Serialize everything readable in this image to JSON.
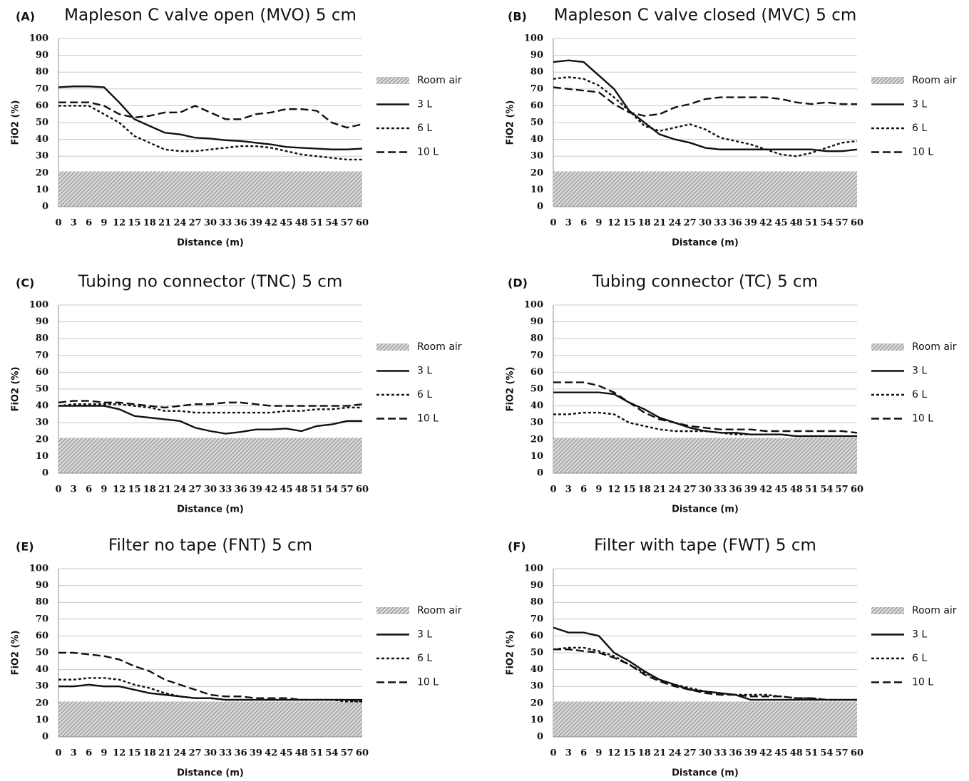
{
  "chart_data": [
    {
      "type": "line",
      "label": "(A)",
      "title": "Mapleson C valve open (MVO) 5 cm",
      "xlabel": "Distance (m)",
      "ylabel": "FiO2 (%)",
      "categories": [
        "0",
        "3",
        "6",
        "9",
        "12",
        "15",
        "18",
        "21",
        "24",
        "27",
        "30",
        "33",
        "36",
        "39",
        "42",
        "45",
        "48",
        "51",
        "54",
        "57",
        "60"
      ],
      "ylim": [
        0,
        100
      ],
      "yticks": [
        0,
        10,
        20,
        30,
        40,
        50,
        60,
        70,
        80,
        90,
        100
      ],
      "grid": true,
      "series": [
        {
          "name": "Room air",
          "style": "area",
          "color": "#888888",
          "values": [
            21,
            21,
            21,
            21,
            21,
            21,
            21,
            21,
            21,
            21,
            21,
            21,
            21,
            21,
            21,
            21,
            21,
            21,
            21,
            21,
            21
          ]
        },
        {
          "name": "3 L",
          "style": "solid",
          "color": "#111111",
          "values": [
            71,
            71.5,
            71.5,
            71,
            62,
            52,
            48,
            44,
            43,
            41,
            40.5,
            39.5,
            39,
            38,
            37,
            35.5,
            35,
            34.5,
            34,
            34,
            34.5
          ]
        },
        {
          "name": "6 L",
          "style": "dotted",
          "color": "#111111",
          "values": [
            60,
            60,
            60,
            55,
            50,
            42,
            38,
            34,
            33,
            33,
            34,
            35,
            36,
            36,
            35,
            33,
            31,
            30,
            29,
            28,
            28
          ]
        },
        {
          "name": "10 L",
          "style": "dashed",
          "color": "#111111",
          "values": [
            62,
            62,
            62,
            60,
            55,
            53,
            54,
            56,
            56,
            60,
            56,
            52,
            52,
            55,
            56,
            58,
            58,
            57,
            50,
            47,
            49
          ]
        }
      ]
    },
    {
      "type": "line",
      "label": "(B)",
      "title": "Mapleson C valve closed (MVC) 5 cm",
      "xlabel": "Distance (m)",
      "ylabel": "FiO2 (%)",
      "categories": [
        "0",
        "3",
        "6",
        "9",
        "12",
        "15",
        "18",
        "21",
        "24",
        "27",
        "30",
        "33",
        "36",
        "39",
        "42",
        "45",
        "48",
        "51",
        "54",
        "57",
        "60"
      ],
      "ylim": [
        0,
        100
      ],
      "yticks": [
        0,
        10,
        20,
        30,
        40,
        50,
        60,
        70,
        80,
        90,
        100
      ],
      "grid": true,
      "series": [
        {
          "name": "Room air",
          "style": "area",
          "color": "#888888",
          "values": [
            21,
            21,
            21,
            21,
            21,
            21,
            21,
            21,
            21,
            21,
            21,
            21,
            21,
            21,
            21,
            21,
            21,
            21,
            21,
            21,
            21
          ]
        },
        {
          "name": "3 L",
          "style": "solid",
          "color": "#111111",
          "values": [
            86,
            87,
            86,
            78,
            70,
            57,
            50,
            43,
            40,
            38,
            35,
            34,
            34,
            34,
            34,
            34,
            34,
            34,
            33,
            33,
            34
          ]
        },
        {
          "name": "6 L",
          "style": "dotted",
          "color": "#111111",
          "values": [
            76,
            77,
            76,
            72,
            65,
            57,
            48,
            45,
            47,
            49,
            46,
            41,
            39,
            37,
            34,
            31,
            30,
            32,
            35,
            38,
            39
          ]
        },
        {
          "name": "10 L",
          "style": "dashed",
          "color": "#111111",
          "values": [
            71,
            70,
            69,
            68,
            61,
            56,
            54,
            55,
            59,
            61,
            64,
            65,
            65,
            65,
            65,
            64,
            62,
            61,
            62,
            61,
            61
          ]
        }
      ]
    },
    {
      "type": "line",
      "label": "(C)",
      "title": "Tubing no connector (TNC) 5 cm",
      "xlabel": "Distance (m)",
      "ylabel": "FiO2 (%)",
      "categories": [
        "0",
        "3",
        "6",
        "9",
        "12",
        "15",
        "18",
        "21",
        "24",
        "27",
        "30",
        "33",
        "36",
        "39",
        "42",
        "45",
        "48",
        "51",
        "54",
        "57",
        "60"
      ],
      "ylim": [
        0,
        100
      ],
      "yticks": [
        0,
        10,
        20,
        30,
        40,
        50,
        60,
        70,
        80,
        90,
        100
      ],
      "grid": true,
      "series": [
        {
          "name": "Room air",
          "style": "area",
          "color": "#888888",
          "values": [
            21,
            21,
            21,
            21,
            21,
            21,
            21,
            21,
            21,
            21,
            21,
            21,
            21,
            21,
            21,
            21,
            21,
            21,
            21,
            21,
            21
          ]
        },
        {
          "name": "3 L",
          "style": "solid",
          "color": "#111111",
          "values": [
            40,
            40,
            40,
            40,
            38,
            34,
            33,
            32,
            31,
            27,
            25,
            23.5,
            24.5,
            26,
            26,
            26.5,
            25,
            28,
            29,
            31,
            31
          ]
        },
        {
          "name": "6 L",
          "style": "dotted",
          "color": "#111111",
          "values": [
            40,
            41,
            41,
            41,
            41,
            40,
            39,
            37,
            37,
            36,
            36,
            36,
            36,
            36,
            36,
            37,
            37,
            38,
            38,
            39,
            39
          ]
        },
        {
          "name": "10 L",
          "style": "dashed",
          "color": "#111111",
          "values": [
            42,
            43,
            43,
            42,
            42,
            41,
            40,
            39,
            40,
            41,
            41,
            42,
            42,
            41,
            40,
            40,
            40,
            40,
            40,
            40,
            41
          ]
        }
      ]
    },
    {
      "type": "line",
      "label": "(D)",
      "title": "Tubing connector (TC) 5 cm",
      "xlabel": "Distance (m)",
      "ylabel": "FiO2 (%)",
      "categories": [
        "0",
        "3",
        "6",
        "9",
        "12",
        "15",
        "18",
        "21",
        "24",
        "27",
        "30",
        "33",
        "36",
        "39",
        "42",
        "45",
        "48",
        "51",
        "54",
        "57",
        "60"
      ],
      "ylim": [
        0,
        100
      ],
      "yticks": [
        0,
        10,
        20,
        30,
        40,
        50,
        60,
        70,
        80,
        90,
        100
      ],
      "grid": true,
      "series": [
        {
          "name": "Room air",
          "style": "area",
          "color": "#888888",
          "values": [
            21,
            21,
            21,
            21,
            21,
            21,
            21,
            21,
            21,
            21,
            21,
            21,
            21,
            21,
            21,
            21,
            21,
            21,
            21,
            21,
            21
          ]
        },
        {
          "name": "3 L",
          "style": "solid",
          "color": "#111111",
          "values": [
            48,
            48,
            48,
            48,
            47,
            42,
            38,
            33,
            30,
            27,
            25,
            24,
            24,
            23,
            23,
            23,
            22,
            22,
            22,
            22,
            22
          ]
        },
        {
          "name": "6 L",
          "style": "dotted",
          "color": "#111111",
          "values": [
            35,
            35,
            36,
            36,
            35,
            30,
            28,
            26,
            25,
            25,
            25,
            24,
            23,
            23,
            23,
            23,
            22,
            22,
            22,
            22,
            22
          ]
        },
        {
          "name": "10 L",
          "style": "dashed",
          "color": "#111111",
          "values": [
            54,
            54,
            54,
            52,
            48,
            42,
            36,
            32,
            30,
            28,
            27,
            26,
            26,
            26,
            25,
            25,
            25,
            25,
            25,
            25,
            24
          ]
        }
      ]
    },
    {
      "type": "line",
      "label": "(E)",
      "title": "Filter no tape (FNT) 5 cm",
      "xlabel": "Distance (m)",
      "ylabel": "FiO2 (%)",
      "categories": [
        "0",
        "3",
        "6",
        "9",
        "12",
        "15",
        "18",
        "21",
        "24",
        "27",
        "30",
        "33",
        "36",
        "39",
        "42",
        "45",
        "48",
        "51",
        "54",
        "57",
        "60"
      ],
      "ylim": [
        0,
        100
      ],
      "yticks": [
        0,
        10,
        20,
        30,
        40,
        50,
        60,
        70,
        80,
        90,
        100
      ],
      "grid": true,
      "series": [
        {
          "name": "Room air",
          "style": "area",
          "color": "#888888",
          "values": [
            21,
            21,
            21,
            21,
            21,
            21,
            21,
            21,
            21,
            21,
            21,
            21,
            21,
            21,
            21,
            21,
            21,
            21,
            21,
            21,
            21
          ]
        },
        {
          "name": "3 L",
          "style": "solid",
          "color": "#111111",
          "values": [
            30,
            30,
            31,
            30,
            30,
            28,
            26,
            25,
            24,
            23,
            23,
            22,
            22,
            22,
            22,
            22,
            22,
            22,
            22,
            22,
            22
          ]
        },
        {
          "name": "6 L",
          "style": "dotted",
          "color": "#111111",
          "values": [
            34,
            34,
            35,
            35,
            34,
            31,
            29,
            26,
            24,
            23,
            23,
            22,
            22,
            22,
            22,
            22,
            22,
            22,
            22,
            21,
            21
          ]
        },
        {
          "name": "10 L",
          "style": "dashed",
          "color": "#111111",
          "values": [
            50,
            50,
            49,
            48,
            46,
            42,
            39,
            34,
            31,
            28,
            25,
            24,
            24,
            23,
            23,
            23,
            22,
            22,
            22,
            22,
            21
          ]
        }
      ]
    },
    {
      "type": "line",
      "label": "(F)",
      "title": "Filter with tape (FWT) 5 cm",
      "xlabel": "Distance (m)",
      "ylabel": "FiO2 (%)",
      "categories": [
        "0",
        "3",
        "6",
        "9",
        "12",
        "15",
        "18",
        "21",
        "24",
        "27",
        "30",
        "33",
        "36",
        "39",
        "42",
        "45",
        "48",
        "51",
        "54",
        "57",
        "60"
      ],
      "ylim": [
        0,
        100
      ],
      "yticks": [
        0,
        10,
        20,
        30,
        40,
        50,
        60,
        70,
        80,
        90,
        100
      ],
      "grid": true,
      "series": [
        {
          "name": "Room air",
          "style": "area",
          "color": "#888888",
          "values": [
            21,
            21,
            21,
            21,
            21,
            21,
            21,
            21,
            21,
            21,
            21,
            21,
            21,
            21,
            21,
            21,
            21,
            21,
            21,
            21,
            21
          ]
        },
        {
          "name": "3 L",
          "style": "solid",
          "color": "#111111",
          "values": [
            65,
            62,
            62,
            60,
            50,
            45,
            39,
            34,
            31,
            28,
            27,
            26,
            25,
            22,
            22,
            22,
            22,
            22,
            22,
            22,
            22
          ]
        },
        {
          "name": "6 L",
          "style": "dotted",
          "color": "#111111",
          "values": [
            52,
            53,
            53,
            51,
            48,
            43,
            38,
            34,
            31,
            29,
            27,
            26,
            25,
            25,
            25,
            24,
            23,
            23,
            22,
            22,
            22
          ]
        },
        {
          "name": "10 L",
          "style": "dashed",
          "color": "#111111",
          "values": [
            52,
            52,
            51,
            50,
            47,
            43,
            37,
            33,
            30,
            28,
            26,
            25,
            25,
            24,
            24,
            24,
            23,
            23,
            22,
            22,
            22
          ]
        }
      ]
    }
  ]
}
